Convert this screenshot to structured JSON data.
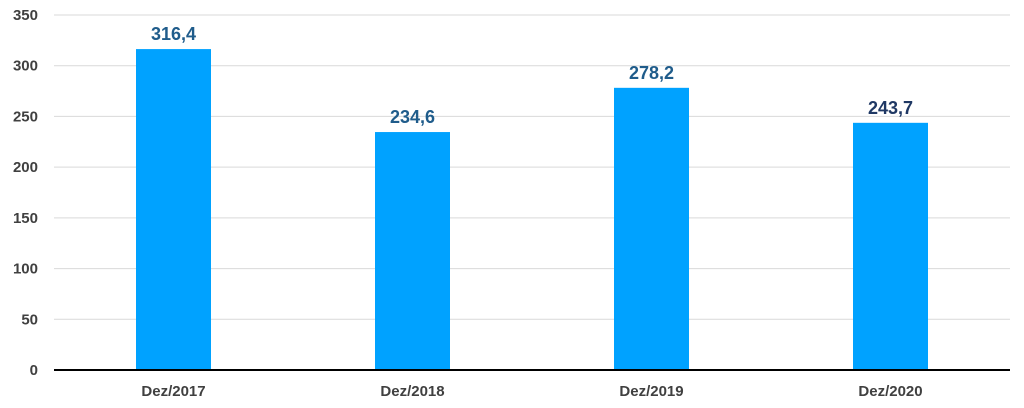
{
  "chart_data": {
    "type": "bar",
    "categories": [
      "Dez/2017",
      "Dez/2018",
      "Dez/2019",
      "Dez/2020"
    ],
    "values": [
      316.4,
      234.6,
      278.2,
      243.7
    ],
    "value_labels": [
      "316,4",
      "234,6",
      "278,2",
      "243,7"
    ],
    "y_ticks": [
      0,
      50,
      100,
      150,
      200,
      250,
      300,
      350
    ],
    "ylim": [
      0,
      350
    ],
    "grid": true,
    "colors": {
      "bar": "#00A2FF",
      "label": "#1F5C8B",
      "label_last": "#1F3864",
      "grid": "#D9D9D9",
      "axis": "#000000"
    }
  }
}
